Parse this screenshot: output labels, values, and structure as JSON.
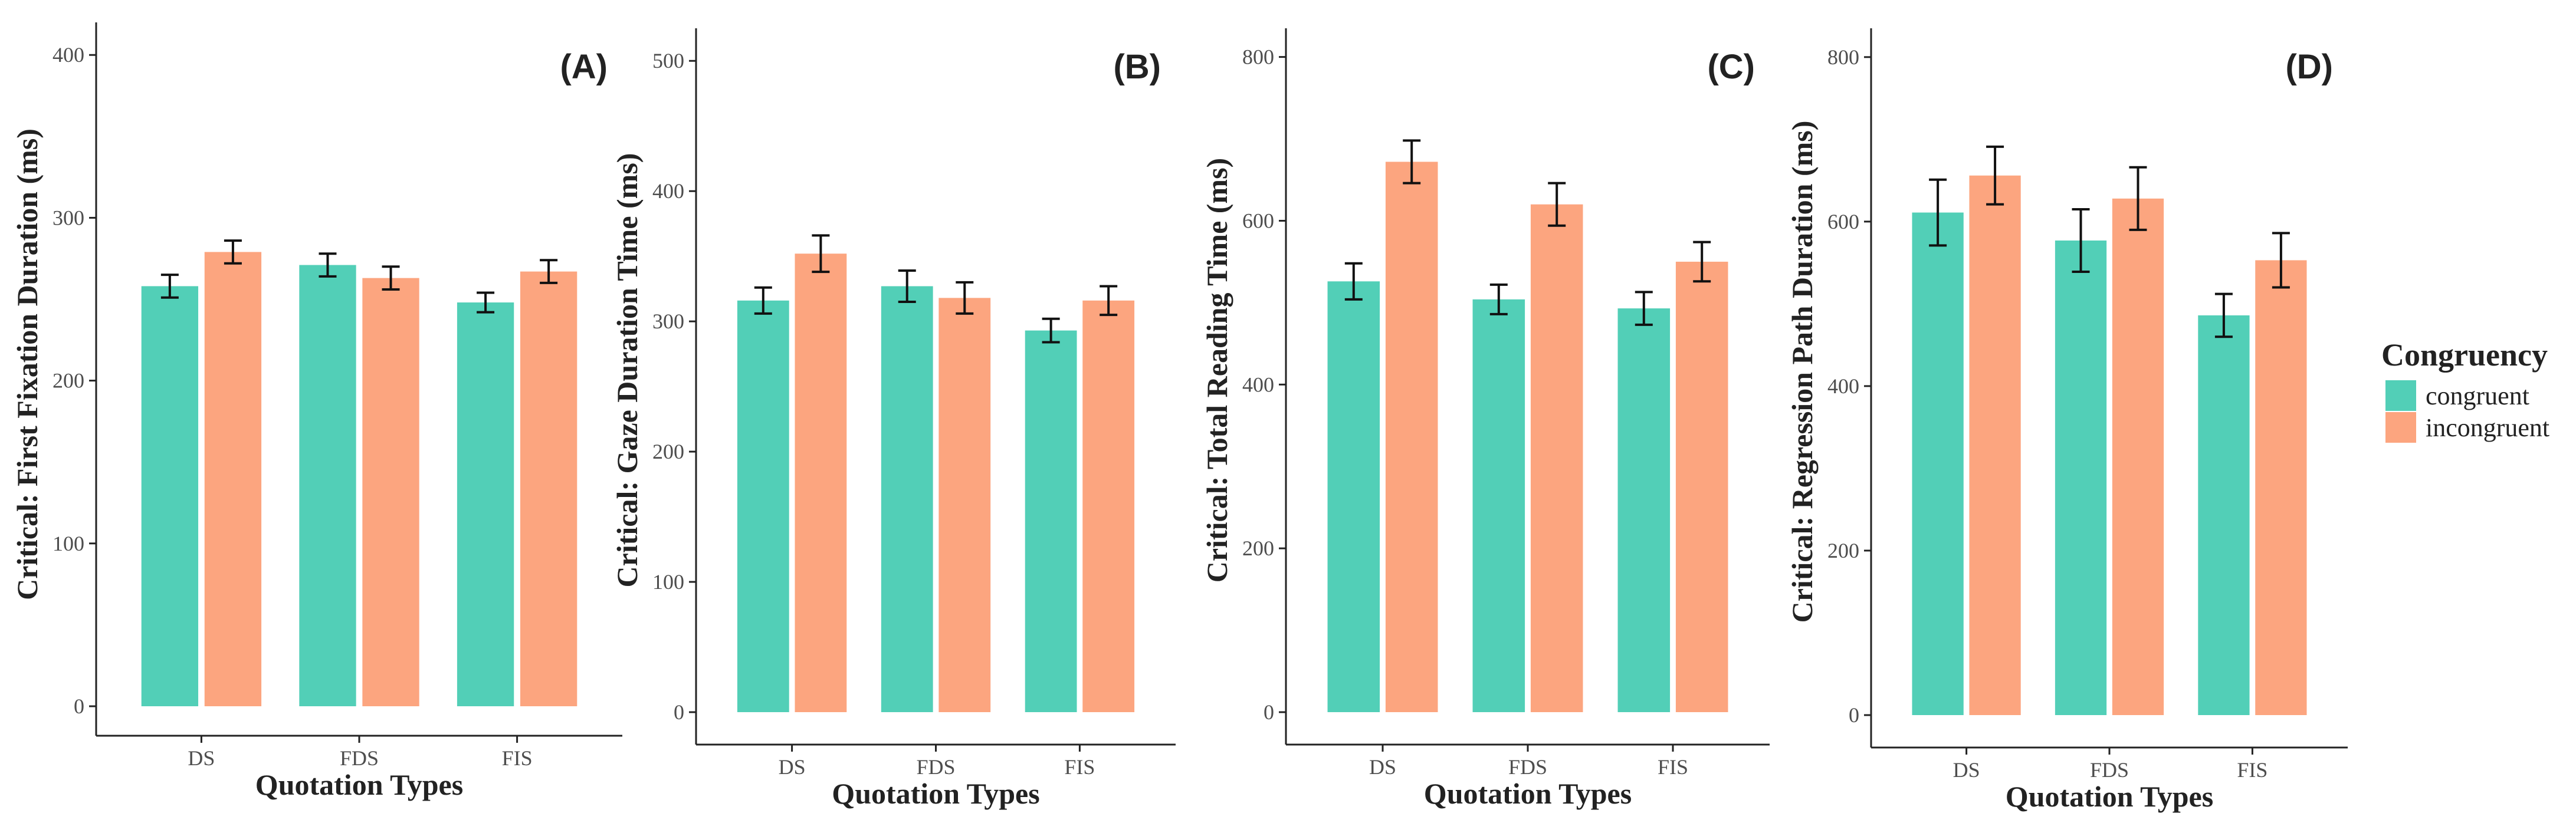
{
  "colors": {
    "congruent": "#52cfb7",
    "incongruent": "#fca57f",
    "error": "#111111",
    "axis": "#222222"
  },
  "legend": {
    "title": "Congruency",
    "items": [
      {
        "label": "congruent",
        "key": "congruent"
      },
      {
        "label": "incongruent",
        "key": "incongruent"
      }
    ]
  },
  "chart_data": [
    {
      "type": "bar",
      "panel": "(A)",
      "title": "",
      "xlabel": "Quotation Types",
      "ylabel": "Critical: First Fixation Duration (ms)",
      "categories": [
        "DS",
        "FDS",
        "FIS"
      ],
      "ylim": [
        0,
        420
      ],
      "yticks": [
        0,
        100,
        200,
        300,
        400
      ],
      "series": [
        {
          "name": "congruent",
          "values": [
            258,
            271,
            248
          ],
          "error": [
            7,
            7,
            6
          ]
        },
        {
          "name": "incongruent",
          "values": [
            279,
            263,
            267
          ],
          "error": [
            7,
            7,
            7
          ]
        }
      ]
    },
    {
      "type": "bar",
      "panel": "(B)",
      "title": "",
      "xlabel": "Quotation Types",
      "ylabel": "Critical: Gaze Duration Time (ms)",
      "categories": [
        "DS",
        "FDS",
        "FIS"
      ],
      "ylim": [
        0,
        525
      ],
      "yticks": [
        0,
        100,
        200,
        300,
        400,
        500
      ],
      "series": [
        {
          "name": "congruent",
          "values": [
            316,
            327,
            293
          ],
          "error": [
            10,
            12,
            9
          ]
        },
        {
          "name": "incongruent",
          "values": [
            352,
            318,
            316
          ],
          "error": [
            14,
            12,
            11
          ]
        }
      ]
    },
    {
      "type": "bar",
      "panel": "(C)",
      "title": "",
      "xlabel": "Quotation Types",
      "ylabel": "Critical: Total Reading Time (ms)",
      "categories": [
        "DS",
        "FDS",
        "FIS"
      ],
      "ylim": [
        0,
        835
      ],
      "yticks": [
        0,
        200,
        400,
        600,
        800
      ],
      "series": [
        {
          "name": "congruent",
          "values": [
            526,
            504,
            493
          ],
          "error": [
            22,
            18,
            20
          ]
        },
        {
          "name": "incongruent",
          "values": [
            672,
            620,
            550
          ],
          "error": [
            26,
            26,
            24
          ]
        }
      ]
    },
    {
      "type": "bar",
      "panel": "(D)",
      "title": "",
      "xlabel": "Quotation Types",
      "ylabel": "Critical: Regression Path Duration (ms)",
      "categories": [
        "DS",
        "FDS",
        "FIS"
      ],
      "ylim": [
        0,
        835
      ],
      "yticks": [
        0,
        200,
        400,
        600,
        800
      ],
      "series": [
        {
          "name": "congruent",
          "values": [
            611,
            577,
            486
          ],
          "error": [
            40,
            38,
            26
          ]
        },
        {
          "name": "incongruent",
          "values": [
            656,
            628,
            553
          ],
          "error": [
            35,
            38,
            33
          ]
        }
      ]
    }
  ]
}
